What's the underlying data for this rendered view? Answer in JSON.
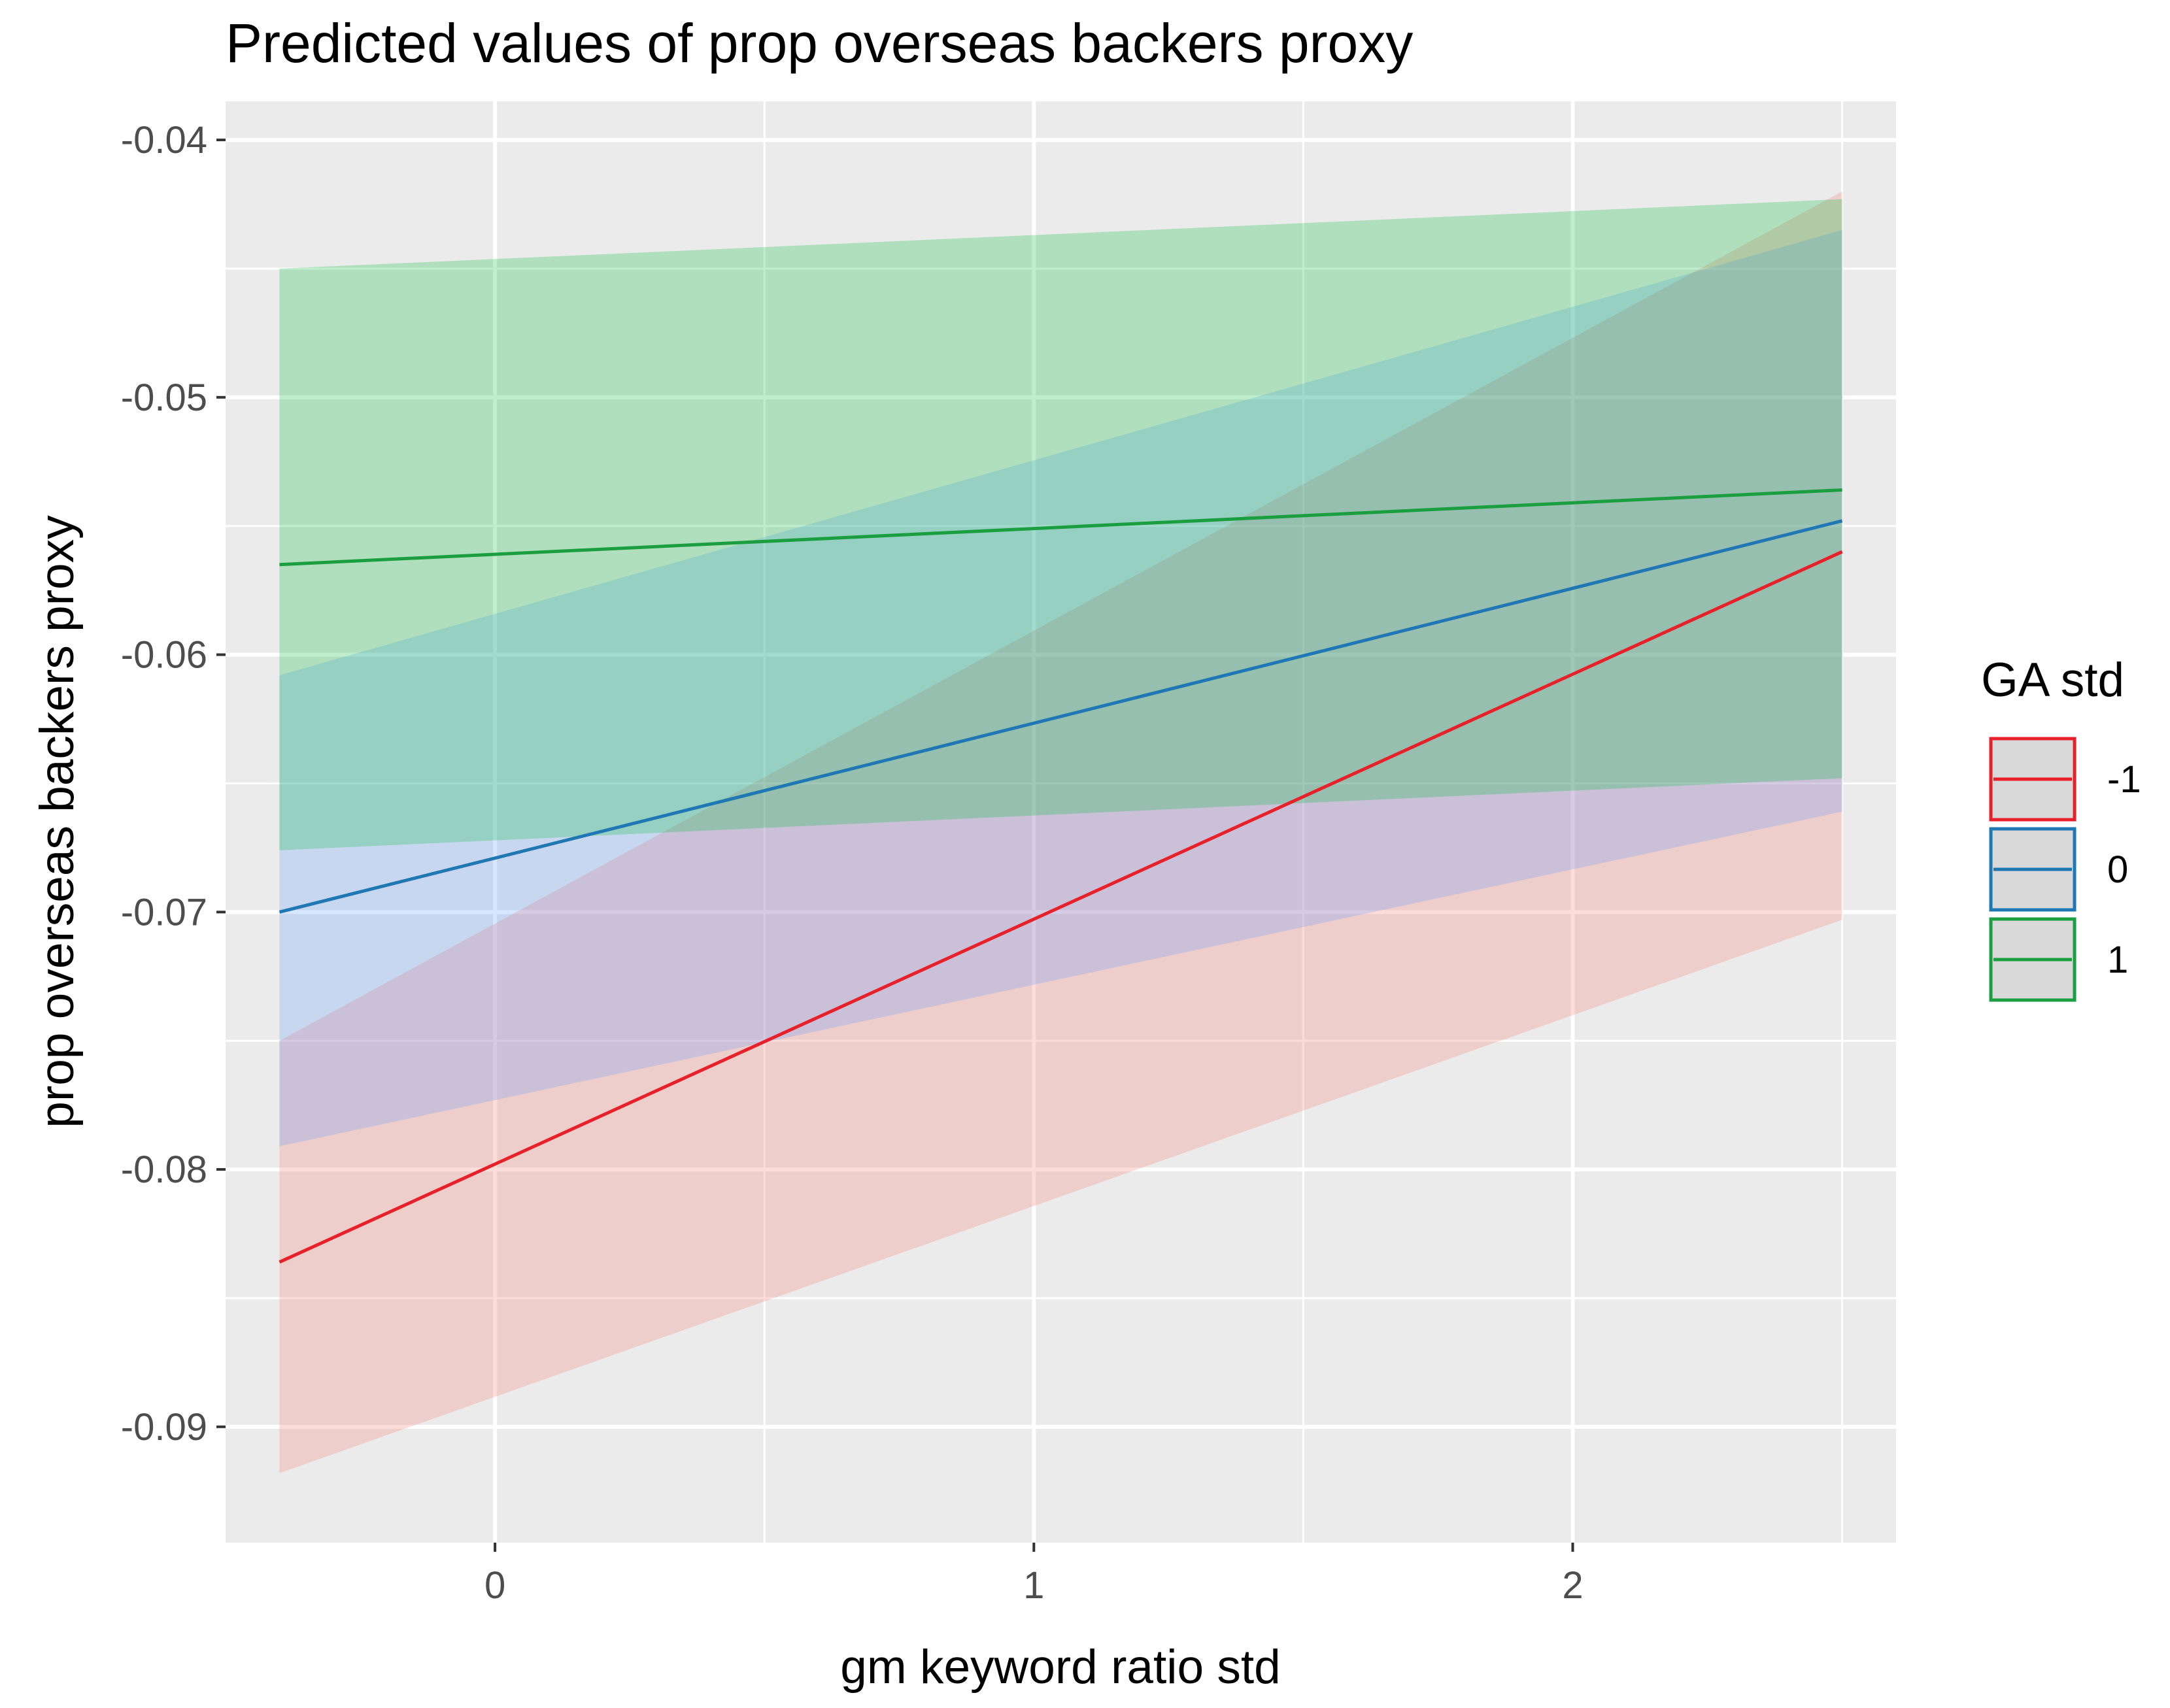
{
  "chart_data": {
    "type": "line",
    "title": "Predicted values of prop overseas backers proxy",
    "xlabel": "gm keyword ratio std",
    "ylabel": "prop overseas backers proxy",
    "xlim": [
      -0.5,
      2.6
    ],
    "ylim": [
      -0.0945,
      -0.0385
    ],
    "x_ticks": [
      0,
      1,
      2
    ],
    "x_tick_labels": [
      "0",
      "1",
      "2"
    ],
    "y_ticks": [
      -0.04,
      -0.05,
      -0.06,
      -0.07,
      -0.08,
      -0.09
    ],
    "y_tick_labels": [
      "-0.04",
      "-0.05",
      "-0.06",
      "-0.07",
      "-0.08",
      "-0.09"
    ],
    "grid": true,
    "panel_background": "#ebebeb",
    "legend": {
      "title": "GA std",
      "position": "right"
    },
    "series": [
      {
        "name": "-1",
        "color": "#e8202a",
        "band_color": "#f8766d",
        "x": [
          -0.4,
          2.5
        ],
        "y": [
          -0.0836,
          -0.056
        ],
        "lower": [
          -0.0918,
          -0.0703
        ],
        "upper": [
          -0.075,
          -0.042
        ]
      },
      {
        "name": "0",
        "color": "#1f78b4",
        "band_color": "#619cff",
        "x": [
          -0.4,
          2.5
        ],
        "y": [
          -0.07,
          -0.0548
        ],
        "lower": [
          -0.0791,
          -0.0661
        ],
        "upper": [
          -0.0608,
          -0.0435
        ]
      },
      {
        "name": "1",
        "color": "#1a9e3f",
        "band_color": "#00ba38",
        "x": [
          -0.4,
          2.5
        ],
        "y": [
          -0.0565,
          -0.0536
        ],
        "lower": [
          -0.0676,
          -0.0648
        ],
        "upper": [
          -0.045,
          -0.0423
        ]
      }
    ]
  }
}
